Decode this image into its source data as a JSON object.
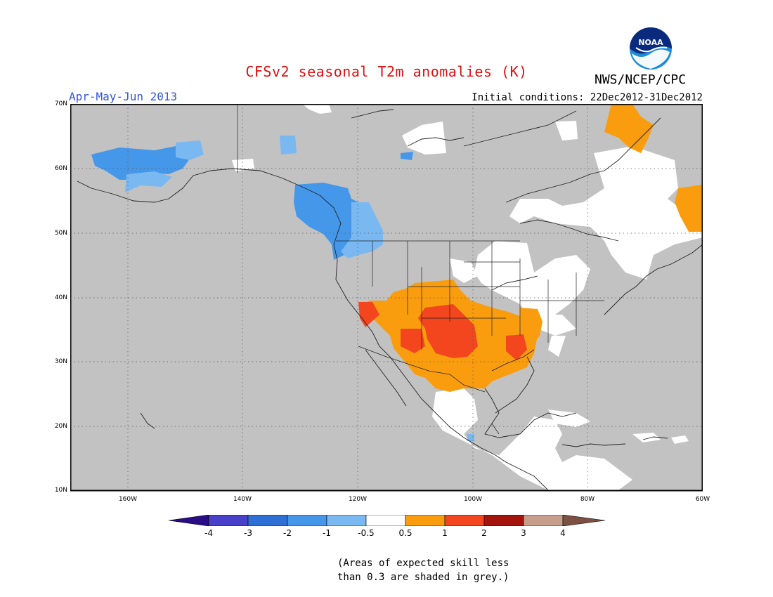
{
  "title": "CFSv2 seasonal T2m anomalies (K)",
  "period": "Apr-May-Jun 2013",
  "initial_conditions": "Initial conditions: 22Dec2012-31Dec2012",
  "agency": "NWS/NCEP/CPC",
  "logo_text": "NOAA",
  "latitude_labels": [
    "70N",
    "60N",
    "50N",
    "40N",
    "30N",
    "20N",
    "10N"
  ],
  "longitude_labels": [
    "160W",
    "140W",
    "120W",
    "100W",
    "80W",
    "60W"
  ],
  "colorbar": {
    "labels": [
      "-4",
      "-3",
      "-2",
      "-1",
      "-0.5",
      "0.5",
      "1",
      "2",
      "3",
      "4"
    ],
    "colors": [
      "#2a0c86",
      "#4840c8",
      "#2e6fd6",
      "#4597ea",
      "#7ab8f2",
      "#ffffff",
      "#f99d0e",
      "#f3461e",
      "#a5130d",
      "#c79d8b",
      "#7c5043"
    ]
  },
  "colors": {
    "title": "#dd1111",
    "period": "#3355dd",
    "ocean_grey": "#c2c2c2",
    "land_border": "#222222"
  },
  "map_extent": {
    "lon_min": -170,
    "lon_max": -60,
    "lat_min": 10,
    "lat_max": 70
  },
  "anomaly_regions": [
    {
      "name": "alaska-cool",
      "category": "-1",
      "color": "#4597ea"
    },
    {
      "name": "alaska-slight-cool",
      "category": "-0.5",
      "color": "#7ab8f2"
    },
    {
      "name": "bc-cool",
      "category": "-1",
      "color": "#4597ea"
    },
    {
      "name": "bc-slight-cool",
      "category": "-0.5",
      "color": "#7ab8f2"
    },
    {
      "name": "southwest-warm",
      "category": "0.5",
      "color": "#f99d0e"
    },
    {
      "name": "southern-plains-hot",
      "category": "1",
      "color": "#f3461e"
    },
    {
      "name": "mississippi-warm",
      "category": "0.5",
      "color": "#f99d0e"
    },
    {
      "name": "labrador-warm",
      "category": "0.5",
      "color": "#f99d0e"
    },
    {
      "name": "baffin-warm",
      "category": "0.5",
      "color": "#f99d0e"
    }
  ],
  "skill_note": [
    "(Areas of expected skill less",
    "than 0.3 are shaded in grey.)"
  ]
}
